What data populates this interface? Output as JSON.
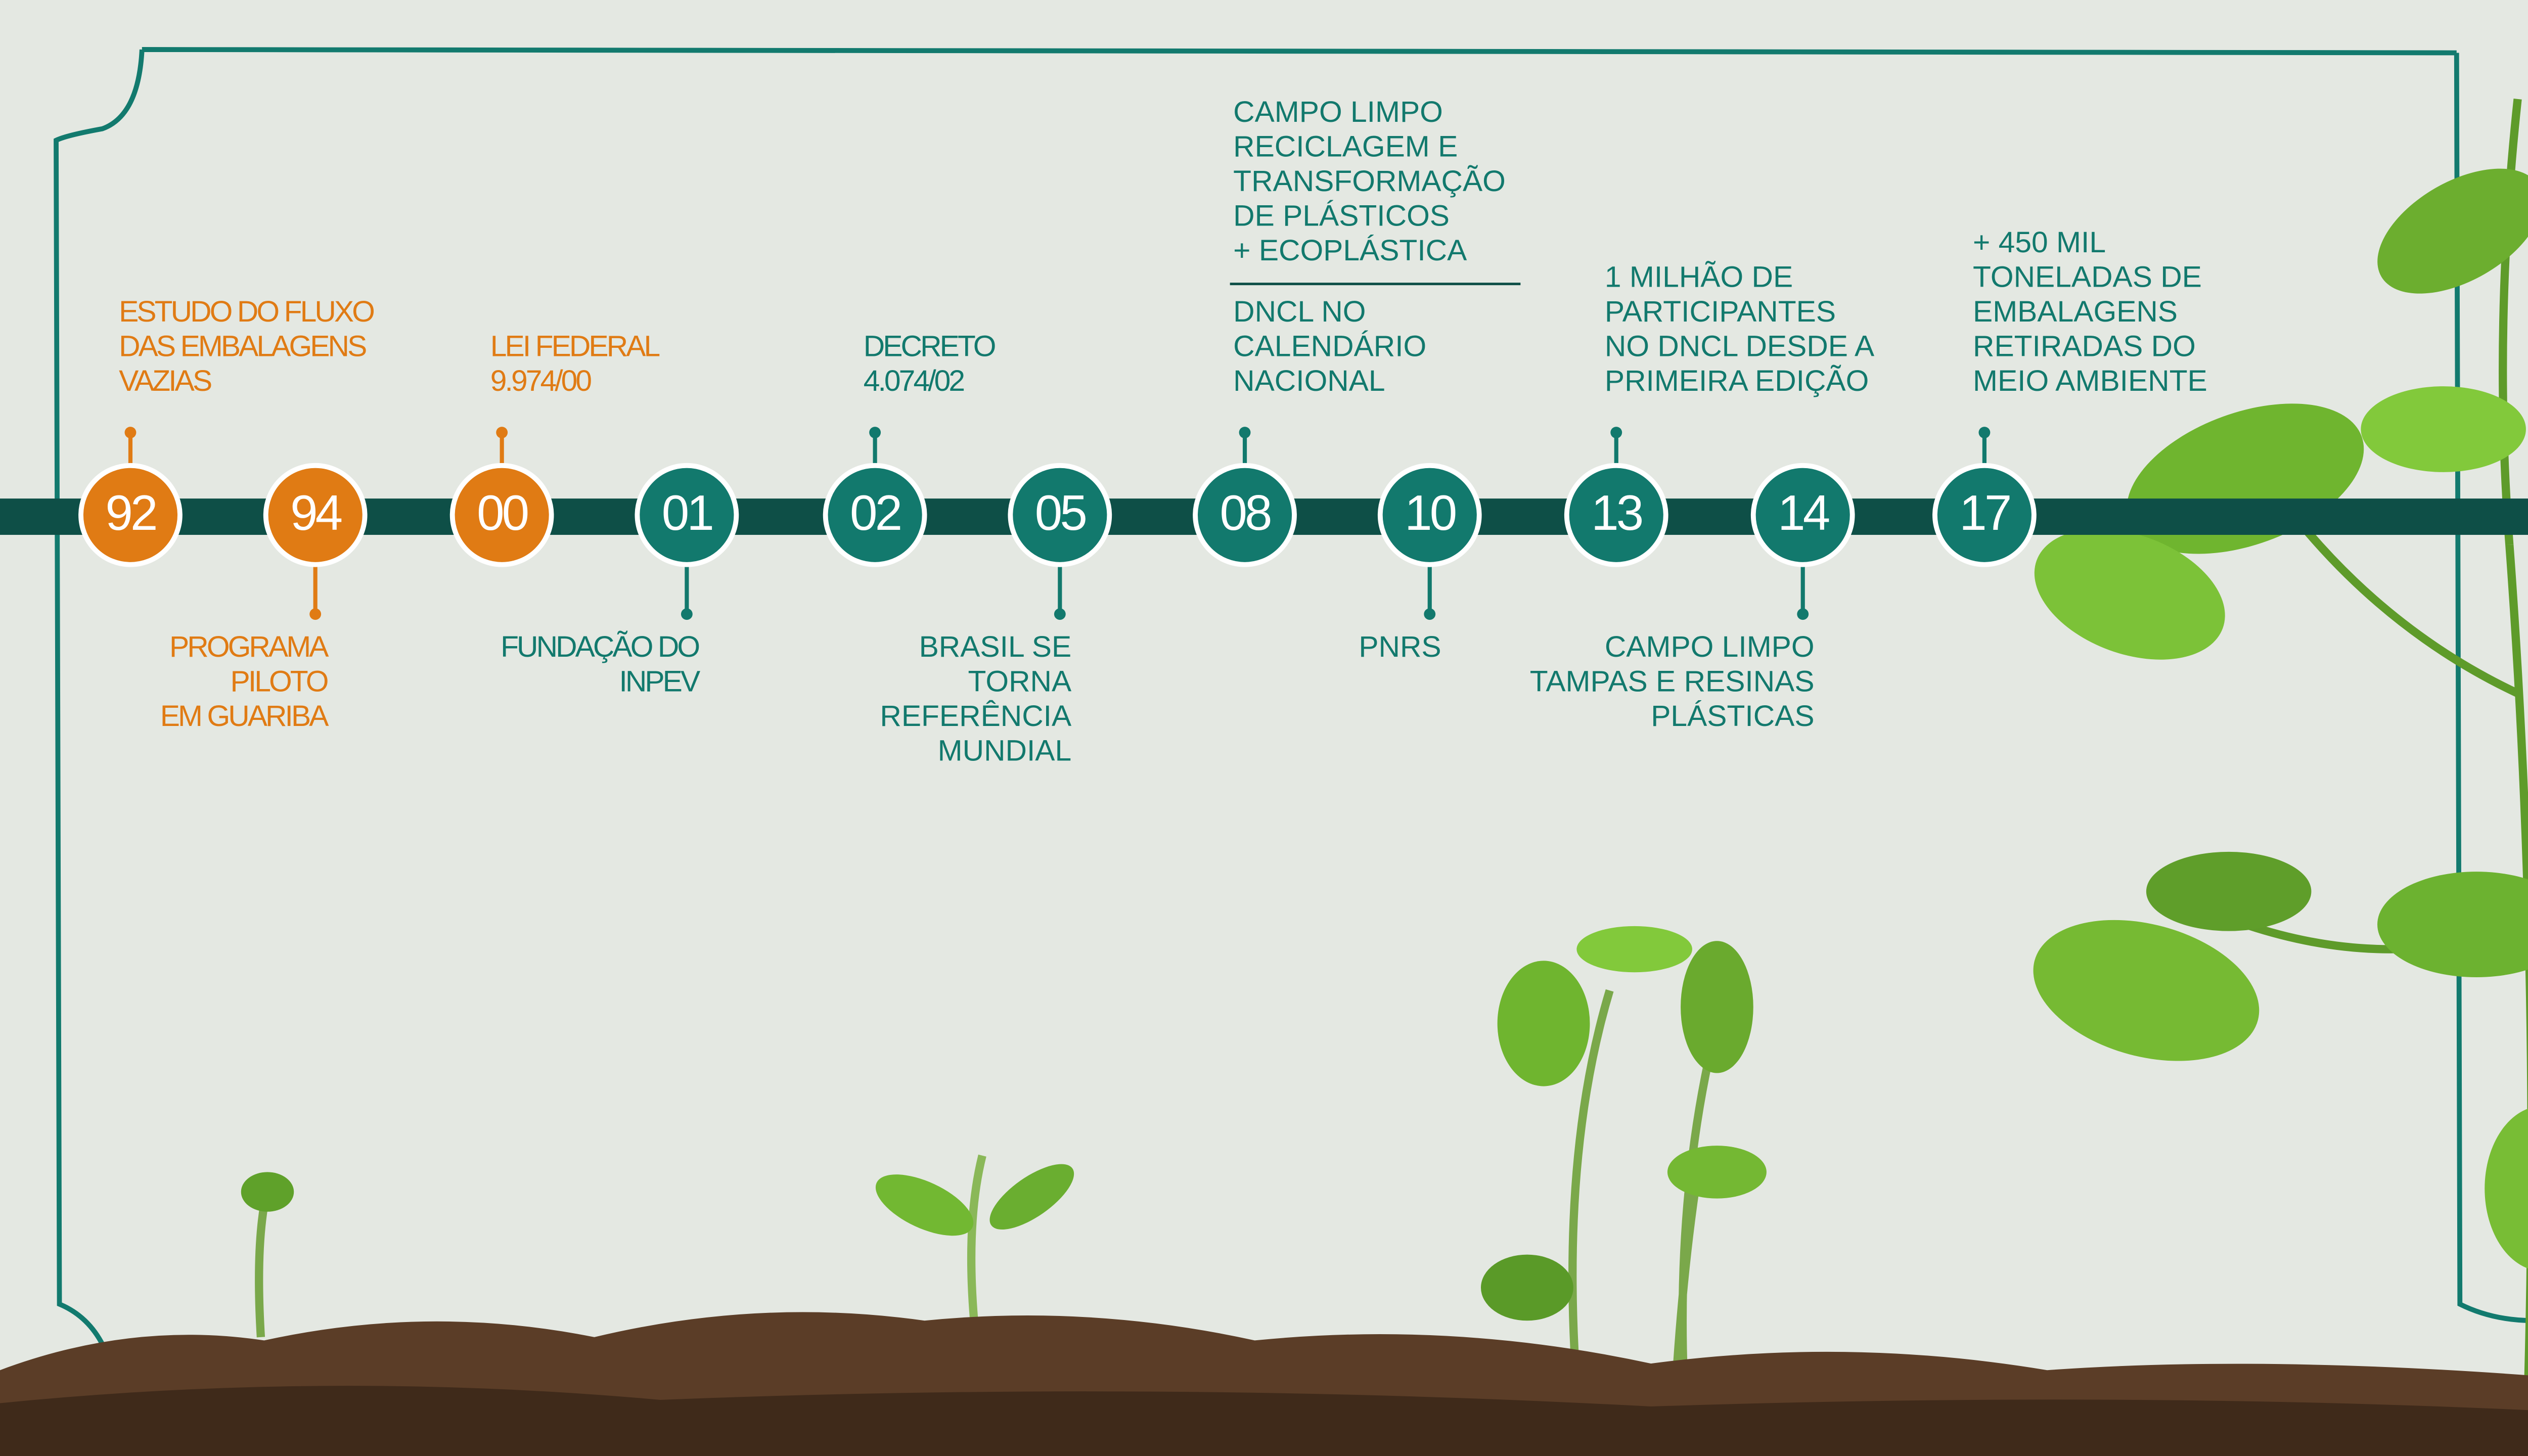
{
  "events": [
    {
      "year": "92",
      "lines": [
        "ESTUDO DO FLUXO",
        "DAS EMBALAGENS",
        "VAZIAS"
      ]
    },
    {
      "year": "94",
      "lines": [
        "PROGRAMA",
        "PILOTO",
        "EM GUARIBA"
      ]
    },
    {
      "year": "00",
      "lines": [
        "LEI FEDERAL",
        "9.974/00"
      ]
    },
    {
      "year": "01",
      "lines": [
        "FUNDAÇÃO DO",
        "INPEV"
      ]
    },
    {
      "year": "02",
      "lines": [
        "DECRETO",
        "4.074/02"
      ]
    },
    {
      "year": "05",
      "lines": [
        "BRASIL SE",
        "TORNA",
        "REFERÊNCIA",
        "MUNDIAL"
      ]
    },
    {
      "year": "08",
      "lines": [
        "DNCL NO",
        "CALENDÁRIO",
        "NACIONAL"
      ],
      "note": [
        "CAMPO LIMPO",
        "RECICLAGEM E",
        "TRANSFORMAÇÃO",
        "DE PLÁSTICOS",
        "+ ECOPLÁSTICA"
      ]
    },
    {
      "year": "10",
      "lines": [
        "PNRS"
      ]
    },
    {
      "year": "13",
      "lines": [
        "1 MILHÃO DE",
        "PARTICIPANTES",
        "NO DNCL DESDE A",
        "PRIMEIRA EDIÇÃO"
      ]
    },
    {
      "year": "14",
      "lines": [
        "CAMPO LIMPO",
        "TAMPAS E RESINAS",
        "PLÁSTICAS"
      ]
    },
    {
      "year": "17",
      "lines": [
        "+ 450 MIL",
        "TONELADAS DE",
        "EMBALAGENS",
        "RETIRADAS DO",
        "MEIO AMBIENTE"
      ]
    }
  ]
}
